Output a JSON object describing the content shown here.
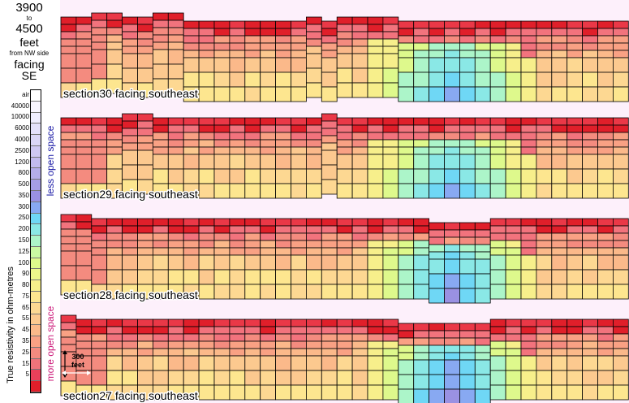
{
  "header": {
    "depth_from": "3900",
    "to_word": "to",
    "depth_to": "4500",
    "unit": "feet",
    "from_note": "from NW side",
    "facing_word": "facing",
    "direction": "SE"
  },
  "legend": {
    "axis_title": "True resistivity in ohm-metres",
    "less_label": "less open space",
    "more_label": "more open space",
    "entries": [
      {
        "label": "air",
        "color": "#ffffff"
      },
      {
        "label": "40000",
        "color": "#f8f5ff"
      },
      {
        "label": "10000",
        "color": "#efedff"
      },
      {
        "label": "6000",
        "color": "#e4e1fb"
      },
      {
        "label": "4000",
        "color": "#dad6f6"
      },
      {
        "label": "2500",
        "color": "#cec8f2"
      },
      {
        "label": "1200",
        "color": "#c2bbee"
      },
      {
        "label": "800",
        "color": "#b4adea"
      },
      {
        "label": "500",
        "color": "#a69ee6"
      },
      {
        "label": "350",
        "color": "#9a91e2"
      },
      {
        "label": "300",
        "color": "#88a9f2"
      },
      {
        "label": "250",
        "color": "#6fd7f5"
      },
      {
        "label": "200",
        "color": "#8ae8e6"
      },
      {
        "label": "150",
        "color": "#acf5c9"
      },
      {
        "label": "125",
        "color": "#caf9a2"
      },
      {
        "label": "100",
        "color": "#def98c"
      },
      {
        "label": "90",
        "color": "#ecf68b"
      },
      {
        "label": "80",
        "color": "#f7ef8b"
      },
      {
        "label": "75",
        "color": "#fde68f"
      },
      {
        "label": "65",
        "color": "#fdd892"
      },
      {
        "label": "55",
        "color": "#fcc98f"
      },
      {
        "label": "45",
        "color": "#fbb98a"
      },
      {
        "label": "35",
        "color": "#f9a184"
      },
      {
        "label": "25",
        "color": "#f48b7f"
      },
      {
        "label": "15",
        "color": "#ef737a"
      },
      {
        "label": "5",
        "color": "#e8405a"
      },
      {
        "label": "",
        "color": "#e01f2a"
      }
    ]
  },
  "scale": {
    "line1": "300",
    "line2": "feet"
  },
  "chart_data": [
    {
      "type": "heatmap",
      "title": "section30  facing southeast",
      "columns": 37,
      "rows": 8,
      "top_profile": [
        1,
        1,
        0,
        0,
        1,
        1,
        0,
        0,
        2,
        2,
        2,
        2,
        2,
        2,
        2,
        2,
        1,
        2,
        1,
        1,
        1,
        1,
        2,
        2,
        2,
        2,
        2,
        2,
        2,
        2,
        2,
        2,
        2,
        2,
        2,
        2,
        2
      ],
      "low_zone": {
        "center_col": 25,
        "half_width": 5,
        "top_row": 3,
        "strength": 0.85
      }
    },
    {
      "type": "heatmap",
      "title": "section29  facing southeast",
      "columns": 37,
      "rows": 8,
      "top_profile": [
        1,
        1,
        1,
        1,
        0,
        0,
        1,
        1,
        1,
        1,
        1,
        1,
        1,
        1,
        1,
        1,
        1,
        0,
        1,
        1,
        1,
        1,
        1,
        1,
        1,
        1,
        1,
        1,
        1,
        1,
        1,
        1,
        1,
        1,
        1,
        1,
        1
      ],
      "low_zone": {
        "center_col": 25,
        "half_width": 5,
        "top_row": 3,
        "strength": 0.85
      }
    },
    {
      "type": "heatmap",
      "title": "section28  facing southeast",
      "columns": 37,
      "rows": 8,
      "top_profile": [
        0,
        0,
        1,
        1,
        1,
        1,
        1,
        1,
        1,
        1,
        1,
        1,
        1,
        1,
        1,
        1,
        1,
        1,
        1,
        1,
        1,
        1,
        1,
        1,
        2,
        2,
        2,
        2,
        1,
        1,
        1,
        1,
        1,
        1,
        1,
        1,
        1
      ],
      "low_zone": {
        "center_col": 25,
        "half_width": 5,
        "top_row": 3,
        "strength": 1.0
      }
    },
    {
      "type": "heatmap",
      "title": "section27  facing southeast",
      "columns": 37,
      "rows": 8,
      "top_profile": [
        0,
        1,
        1,
        1,
        1,
        1,
        1,
        1,
        1,
        1,
        1,
        1,
        1,
        1,
        1,
        1,
        1,
        1,
        1,
        1,
        1,
        1,
        2,
        2,
        2,
        2,
        2,
        2,
        1,
        1,
        1,
        1,
        1,
        1,
        1,
        1,
        1
      ],
      "low_zone": {
        "center_col": 25,
        "half_width": 5,
        "top_row": 3,
        "strength": 1.05
      }
    }
  ]
}
